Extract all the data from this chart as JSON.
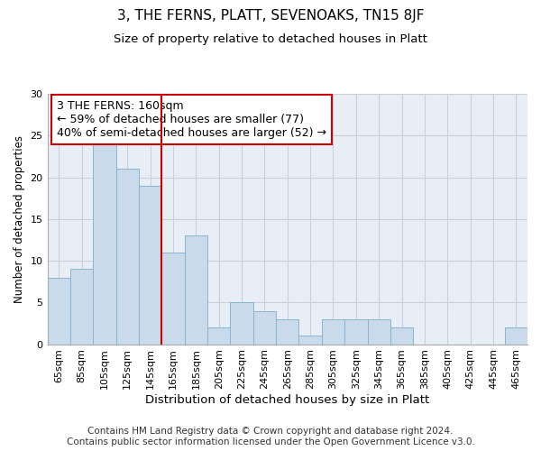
{
  "title": "3, THE FERNS, PLATT, SEVENOAKS, TN15 8JF",
  "subtitle": "Size of property relative to detached houses in Platt",
  "xlabel": "Distribution of detached houses by size in Platt",
  "ylabel": "Number of detached properties",
  "categories": [
    "65sqm",
    "85sqm",
    "105sqm",
    "125sqm",
    "145sqm",
    "165sqm",
    "185sqm",
    "205sqm",
    "225sqm",
    "245sqm",
    "265sqm",
    "285sqm",
    "305sqm",
    "325sqm",
    "345sqm",
    "365sqm",
    "385sqm",
    "405sqm",
    "425sqm",
    "445sqm",
    "465sqm"
  ],
  "values": [
    8,
    9,
    25,
    21,
    19,
    11,
    13,
    2,
    5,
    4,
    3,
    1,
    3,
    3,
    3,
    2,
    0,
    0,
    0,
    0,
    2
  ],
  "bar_color": "#c9daea",
  "bar_edge_color": "#8ab4ce",
  "bar_edge_width": 0.7,
  "grid_color": "#c8d0da",
  "vline_color": "#cc0000",
  "vline_linewidth": 1.5,
  "vline_index": 4.5,
  "annotation_box_text": "3 THE FERNS: 160sqm\n← 59% of detached houses are smaller (77)\n40% of semi-detached houses are larger (52) →",
  "annotation_box_color": "#cc0000",
  "annotation_text_fontsize": 9,
  "ylim": [
    0,
    30
  ],
  "yticks": [
    0,
    5,
    10,
    15,
    20,
    25,
    30
  ],
  "footer_line1": "Contains HM Land Registry data © Crown copyright and database right 2024.",
  "footer_line2": "Contains public sector information licensed under the Open Government Licence v3.0.",
  "background_color": "#e8eef5",
  "title_fontsize": 11,
  "subtitle_fontsize": 9.5,
  "xlabel_fontsize": 9.5,
  "ylabel_fontsize": 8.5,
  "tick_fontsize": 8,
  "footer_fontsize": 7.5
}
